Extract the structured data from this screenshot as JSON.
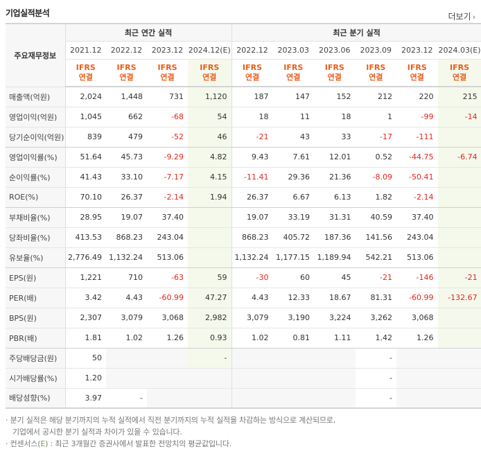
{
  "header": {
    "title": "기업실적분석",
    "more_label": "더보기",
    "more_chevron": "›"
  },
  "table": {
    "row_header": "주요재무정보",
    "groups": {
      "annual": "최근 연간 실적",
      "quarter": "최근 분기 실적"
    },
    "periods": [
      "2021.12",
      "2022.12",
      "2023.12",
      "2024.12(E)",
      "2022.12",
      "2023.03",
      "2023.06",
      "2023.09",
      "2023.12",
      "2024.03(E)"
    ],
    "ifrs_top": "IFRS",
    "ifrs_bottom": "연결",
    "rows": [
      {
        "label": "매출액(억원)",
        "values": [
          "2,024",
          "1,448",
          "731",
          "1,120",
          "187",
          "147",
          "152",
          "212",
          "220",
          "215"
        ]
      },
      {
        "label": "영업이익(억원)",
        "values": [
          "1,045",
          "662",
          "-68",
          "54",
          "18",
          "11",
          "18",
          "1",
          "-99",
          "-14"
        ]
      },
      {
        "label": "당기순이익(억원)",
        "values": [
          "839",
          "479",
          "-52",
          "46",
          "-21",
          "43",
          "33",
          "-17",
          "-111",
          ""
        ]
      },
      {
        "label": "영업이익률(%)",
        "values": [
          "51.64",
          "45.73",
          "-9.29",
          "4.82",
          "9.43",
          "7.61",
          "12.01",
          "0.52",
          "-44.75",
          "-6.74"
        ]
      },
      {
        "label": "순이익률(%)",
        "values": [
          "41.43",
          "33.10",
          "-7.17",
          "4.15",
          "-11.41",
          "29.36",
          "21.36",
          "-8.09",
          "-50.41",
          ""
        ]
      },
      {
        "label": "ROE(%)",
        "values": [
          "70.10",
          "26.37",
          "-2.14",
          "1.94",
          "26.37",
          "6.67",
          "6.13",
          "1.82",
          "-2.14",
          ""
        ]
      },
      {
        "label": "부채비율(%)",
        "values": [
          "28.95",
          "19.07",
          "37.40",
          "",
          "19.07",
          "33.19",
          "31.31",
          "40.59",
          "37.40",
          ""
        ]
      },
      {
        "label": "당좌비율(%)",
        "values": [
          "413.53",
          "868.23",
          "243.04",
          "",
          "868.23",
          "405.72",
          "187.36",
          "141.56",
          "243.04",
          ""
        ]
      },
      {
        "label": "유보율(%)",
        "values": [
          "2,776.49",
          "1,132.24",
          "513.06",
          "",
          "1,132.24",
          "1,177.15",
          "1,189.94",
          "542.21",
          "513.06",
          ""
        ]
      },
      {
        "label": "EPS(원)",
        "values": [
          "1,221",
          "710",
          "-63",
          "59",
          "-30",
          "60",
          "45",
          "-21",
          "-146",
          "-21"
        ]
      },
      {
        "label": "PER(배)",
        "values": [
          "3.42",
          "4.43",
          "-60.99",
          "47.27",
          "4.43",
          "12.33",
          "18.67",
          "81.31",
          "-60.99",
          "-132.67"
        ]
      },
      {
        "label": "BPS(원)",
        "values": [
          "2,307",
          "3,079",
          "3,068",
          "2,982",
          "3,079",
          "3,190",
          "3,224",
          "3,262",
          "3,068",
          ""
        ]
      },
      {
        "label": "PBR(배)",
        "values": [
          "1.81",
          "1.02",
          "1.26",
          "0.93",
          "1.02",
          "0.81",
          "1.11",
          "1.42",
          "1.26",
          ""
        ]
      },
      {
        "label": "주당배당금(원)",
        "values": [
          "50",
          "",
          "",
          "-",
          "",
          "",
          "",
          "-",
          "",
          ""
        ]
      },
      {
        "label": "시가배당률(%)",
        "values": [
          "1.20",
          "",
          "",
          "",
          "",
          "",
          "",
          "-",
          "",
          ""
        ]
      },
      {
        "label": "배당성향(%)",
        "values": [
          "3.97",
          "-",
          "",
          "",
          "",
          "",
          "",
          "-",
          "",
          ""
        ]
      }
    ]
  },
  "notes": {
    "line1": "· 분기 실적은 해당 분기까지의 누적 실적에서 직전 분기까지의 누적 실적을 차감하는 방식으로 계산되므로,",
    "line2": "기업에서 공시한 분기 실적과 차이가 있을 수 있습니다.",
    "line3_pre": "· 컨센서스(",
    "line3_em": "E",
    "line3_post": ") : 최근 3개월간 증권사에서 발표한 전망치의 평균값입니다."
  },
  "colors": {
    "negative": "#e4241c",
    "ifrs": "#e85d1a",
    "estimate_bg": "#f4f9ec",
    "consensus_mark": "#6aa33f"
  }
}
